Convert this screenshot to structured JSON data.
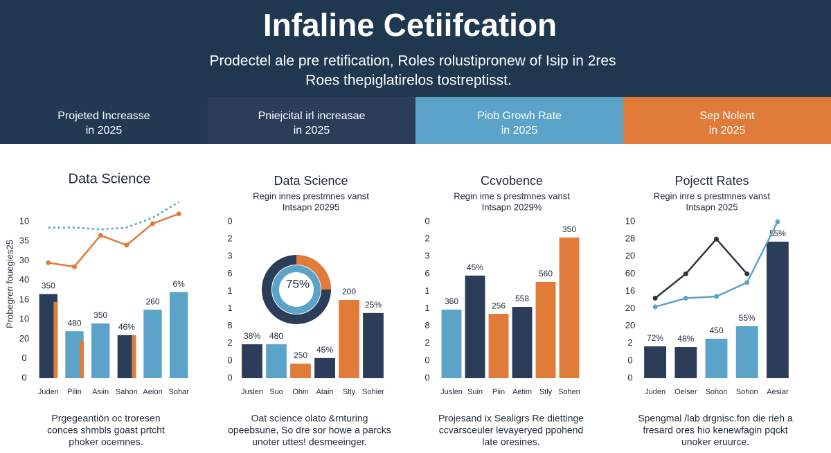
{
  "header": {
    "title": "Infaline Cetiifcation",
    "subtitle": [
      "Prodectel ale pre retification, Roles rolustipronew of Isip in 2res",
      "Roes thepiglatirelos tostreptisst."
    ]
  },
  "tabs": [
    {
      "lines": [
        "Projeted Increasse",
        "in 2025"
      ],
      "color": "#213a52"
    },
    {
      "lines": [
        "Pniejcital irl increasae",
        "in 2025"
      ],
      "color": "#2c3d59"
    },
    {
      "lines": [
        "Piob Growh Rate",
        "in 2025"
      ],
      "color": "#5ba3c9"
    },
    {
      "lines": [
        "Sep Nolent",
        "in 2025"
      ],
      "color": "#e07b39"
    }
  ],
  "chart_data": [
    {
      "type": "bar",
      "title": "Data Science",
      "y_label": "Probegren fouegies25",
      "categories": [
        "Juden",
        "Pilin",
        "Asiin",
        "Sahon",
        "Aeion",
        "Sohar"
      ],
      "ylim": [
        0,
        9
      ],
      "yticks": [
        {
          "value": 0,
          "label": "0"
        },
        {
          "value": 1,
          "label": "0"
        },
        {
          "value": 2,
          "label": "20"
        },
        {
          "value": 3,
          "label": "10"
        },
        {
          "value": 4,
          "label": "16"
        },
        {
          "value": 5,
          "label": "40"
        },
        {
          "value": 6,
          "label": "30"
        },
        {
          "value": 7,
          "label": "35"
        },
        {
          "value": 8,
          "label": "10"
        }
      ],
      "series": [
        {
          "type": "bar",
          "values": [
            4.3,
            2.4,
            2.8,
            2.2,
            3.5,
            4.4
          ],
          "colors": [
            "#2c3d59",
            "#5ba3c9",
            "#5ba3c9",
            "#2c3d59",
            "#5ba3c9",
            "#5ba3c9"
          ],
          "annotations": [
            "350",
            "480",
            "350",
            "46%",
            "260",
            "6%"
          ]
        },
        {
          "type": "bar",
          "thin": true,
          "values": [
            3.9,
            1.9,
            null,
            2.2,
            null,
            null
          ],
          "color": "#e07b39"
        },
        {
          "type": "line",
          "values": [
            5.9,
            5.7,
            7.3,
            6.8,
            7.9,
            8.4
          ],
          "color": "#e07b39",
          "markers": true
        },
        {
          "type": "line",
          "dashed": true,
          "values": [
            7.7,
            7.7,
            7.6,
            7.7,
            8.2,
            9.0
          ],
          "color": "#4ba3b5",
          "markers": false
        }
      ],
      "caption": [
        "Prgegeantiön oc troresen",
        "conces shmbls goast prtcht",
        "phoker ocemnes."
      ]
    },
    {
      "type": "bar",
      "title": "Data Science",
      "subtitle": [
        "Regin innes prestmnes vanst",
        "Intsapn 20295"
      ],
      "categories": [
        "Juslen",
        "Suo",
        "Ohin",
        "Atain",
        "Stly",
        "Sohier"
      ],
      "ylim": [
        0,
        9
      ],
      "yticks": [
        {
          "value": 0,
          "label": "0"
        },
        {
          "value": 1,
          "label": "0"
        },
        {
          "value": 2,
          "label": "2"
        },
        {
          "value": 3,
          "label": "8"
        },
        {
          "value": 4,
          "label": "1"
        },
        {
          "value": 5,
          "label": "1"
        },
        {
          "value": 6,
          "label": "6"
        },
        {
          "value": 7,
          "label": "3"
        },
        {
          "value": 8,
          "label": "2"
        },
        {
          "value": 9,
          "label": "0"
        }
      ],
      "series": [
        {
          "type": "bar",
          "values": [
            1.95,
            1.95,
            0.84,
            1.16,
            4.5,
            3.75
          ],
          "colors": [
            "#2c3d59",
            "#5ba3c9",
            "#e07b39",
            "#2c3d59",
            "#e07b39",
            "#2c3d59"
          ],
          "annotations": [
            "38%",
            "480",
            "250",
            "45%",
            "200",
            "25%"
          ]
        }
      ],
      "center_label": "75%",
      "caption": [
        "Oat science olato &rnturing",
        "opeebsune, So dre sor howe a parcks",
        "unoter uttes! desmeeinger."
      ]
    },
    {
      "type": "bar",
      "title": "Ccvobence",
      "subtitle": [
        "Regin ime s prestmnes vanst",
        "Intsapn 2029%"
      ],
      "categories": [
        "Juslen",
        "Suin",
        "Piin",
        "Aetim",
        "Stly",
        "Sohen"
      ],
      "ylim": [
        0,
        9
      ],
      "yticks": [
        {
          "value": 0,
          "label": "0"
        },
        {
          "value": 1,
          "label": "0"
        },
        {
          "value": 2,
          "label": "2"
        },
        {
          "value": 3,
          "label": "8"
        },
        {
          "value": 4,
          "label": "1"
        },
        {
          "value": 5,
          "label": "1"
        },
        {
          "value": 6,
          "label": "6"
        },
        {
          "value": 7,
          "label": "3"
        },
        {
          "value": 8,
          "label": "2"
        },
        {
          "value": 9,
          "label": "0"
        }
      ],
      "series": [
        {
          "type": "bar",
          "values": [
            3.94,
            5.9,
            3.7,
            4.1,
            5.54,
            8.09
          ],
          "colors": [
            "#5ba3c9",
            "#2c3d59",
            "#e07b39",
            "#2c3d59",
            "#e07b39",
            "#e07b39"
          ],
          "annotations": [
            "360",
            "45%",
            "256",
            "558",
            "560",
            "350"
          ]
        }
      ],
      "caption": [
        "Projesand ix Sealigrs Re diettinge",
        "ccvarsceuler levayeryed ppohend",
        "late oresines."
      ]
    },
    {
      "type": "bar",
      "title": "Pojectt Rates",
      "subtitle": [
        "Regin inre s prestmnes vanst",
        "Intsapn 2025"
      ],
      "categories": [
        "Juden",
        "Oelser",
        "Sohon",
        "Sohon",
        "Aesiar"
      ],
      "ylim": [
        0,
        9
      ],
      "yticks": [
        {
          "value": 0,
          "label": "0"
        },
        {
          "value": 1,
          "label": "0"
        },
        {
          "value": 2,
          "label": "2"
        },
        {
          "value": 3,
          "label": "20"
        },
        {
          "value": 4,
          "label": "20"
        },
        {
          "value": 5,
          "label": "16"
        },
        {
          "value": 6,
          "label": "60"
        },
        {
          "value": 7,
          "label": "20"
        },
        {
          "value": 8,
          "label": "28"
        },
        {
          "value": 9,
          "label": "10"
        }
      ],
      "series": [
        {
          "type": "bar",
          "values": [
            1.83,
            1.79,
            2.27,
            2.99,
            7.85
          ],
          "colors": [
            "#2c3d59",
            "#2c3d59",
            "#5ba3c9",
            "#5ba3c9",
            "#2c3d59"
          ],
          "annotations": [
            "72%",
            "48%",
            "450",
            "55%",
            "55%"
          ]
        },
        {
          "type": "line",
          "values": [
            4.6,
            6.0,
            8.0,
            6.0,
            null
          ],
          "color": "#2c3440",
          "markers": true
        },
        {
          "type": "line",
          "values": [
            4.1,
            4.6,
            4.7,
            5.5,
            9.0
          ],
          "color": "#5ba3c9",
          "markers": true
        }
      ],
      "caption": [
        "Spengmal /lab drgnisc.fon die rieh a",
        "fresard ores hio kenewfagin pqckt",
        "unoker eruurce."
      ]
    }
  ]
}
